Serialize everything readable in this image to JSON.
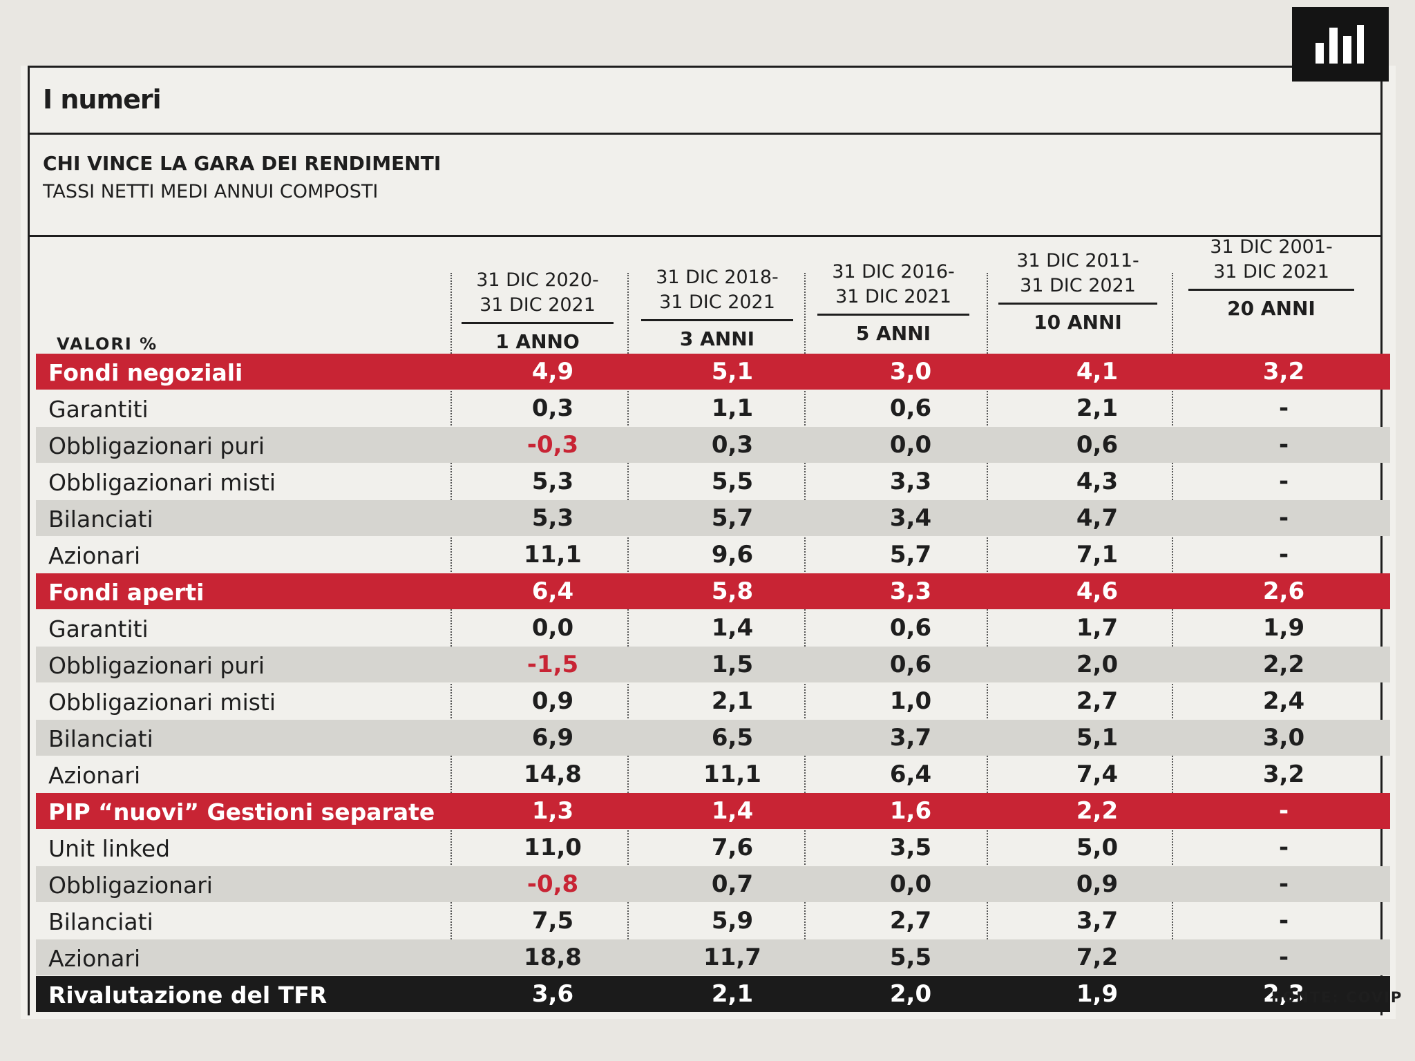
{
  "header": {
    "section_title": "I numeri",
    "icon": "bar-chart-icon"
  },
  "headline": "CHI VINCE LA GARA DEI RENDIMENTI",
  "subheadline": "TASSI NETTI MEDI ANNUI COMPOSTI",
  "table": {
    "units_label": "VALORI %",
    "columns": [
      {
        "range_line1": "31 DIC 2020-",
        "range_line2": "31 DIC 2021",
        "years": "1 ANNO"
      },
      {
        "range_line1": "31 DIC 2018-",
        "range_line2": "31 DIC 2021",
        "years": "3 ANNI"
      },
      {
        "range_line1": "31 DIC 2016-",
        "range_line2": "31 DIC 2021",
        "years": "5 ANNI"
      },
      {
        "range_line1": "31 DIC 2011-",
        "range_line2": "31 DIC 2021",
        "years": "10 ANNI"
      },
      {
        "range_line1": "31 DIC 2001-",
        "range_line2": "31 DIC 2021",
        "years": "20 ANNI"
      }
    ],
    "rows": [
      {
        "kind": "group",
        "label": "Fondi negoziali",
        "values": [
          "4,9",
          "5,1",
          "3,0",
          "4,1",
          "3,2"
        ]
      },
      {
        "kind": "sub",
        "label": "Garantiti",
        "values": [
          "0,3",
          "1,1",
          "0,6",
          "2,1",
          "-"
        ]
      },
      {
        "kind": "sub",
        "label": "Obbligazionari puri",
        "values": [
          "-0,3",
          "0,3",
          "0,0",
          "0,6",
          "-"
        ]
      },
      {
        "kind": "sub",
        "label": "Obbligazionari misti",
        "values": [
          "5,3",
          "5,5",
          "3,3",
          "4,3",
          "-"
        ]
      },
      {
        "kind": "sub",
        "label": "Bilanciati",
        "values": [
          "5,3",
          "5,7",
          "3,4",
          "4,7",
          "-"
        ]
      },
      {
        "kind": "sub",
        "label": "Azionari",
        "values": [
          "11,1",
          "9,6",
          "5,7",
          "7,1",
          "-"
        ]
      },
      {
        "kind": "group",
        "label": "Fondi aperti",
        "values": [
          "6,4",
          "5,8",
          "3,3",
          "4,6",
          "2,6"
        ]
      },
      {
        "kind": "sub",
        "label": "Garantiti",
        "values": [
          "0,0",
          "1,4",
          "0,6",
          "1,7",
          "1,9"
        ]
      },
      {
        "kind": "sub",
        "label": "Obbligazionari puri",
        "values": [
          "-1,5",
          "1,5",
          "0,6",
          "2,0",
          "2,2"
        ]
      },
      {
        "kind": "sub",
        "label": "Obbligazionari misti",
        "values": [
          "0,9",
          "2,1",
          "1,0",
          "2,7",
          "2,4"
        ]
      },
      {
        "kind": "sub",
        "label": "Bilanciati",
        "values": [
          "6,9",
          "6,5",
          "3,7",
          "5,1",
          "3,0"
        ]
      },
      {
        "kind": "sub",
        "label": "Azionari",
        "values": [
          "14,8",
          "11,1",
          "6,4",
          "7,4",
          "3,2"
        ]
      },
      {
        "kind": "group",
        "label": "PIP “nuovi” Gestioni separate",
        "values": [
          "1,3",
          "1,4",
          "1,6",
          "2,2",
          "-"
        ]
      },
      {
        "kind": "sub",
        "label": "Unit linked",
        "values": [
          "11,0",
          "7,6",
          "3,5",
          "5,0",
          "-"
        ]
      },
      {
        "kind": "sub",
        "label": "Obbligazionari",
        "values": [
          "-0,8",
          "0,7",
          "0,0",
          "0,9",
          "-"
        ]
      },
      {
        "kind": "sub",
        "label": "Bilanciati",
        "values": [
          "7,5",
          "5,9",
          "2,7",
          "3,7",
          "-"
        ]
      },
      {
        "kind": "sub",
        "label": "Azionari",
        "values": [
          "18,8",
          "11,7",
          "5,5",
          "7,2",
          "-"
        ]
      },
      {
        "kind": "tfr",
        "label": "Rivalutazione del TFR",
        "values": [
          "3,6",
          "2,1",
          "2,0",
          "1,9",
          "2,3"
        ]
      }
    ]
  },
  "source": "FONTE: COVIP",
  "colors": {
    "group_row": "#c82434",
    "tfr_row": "#1b1b1b",
    "negative_value": "#c82434",
    "shaded_row": "#d6d5d0",
    "paper": "#f1f0ec"
  }
}
